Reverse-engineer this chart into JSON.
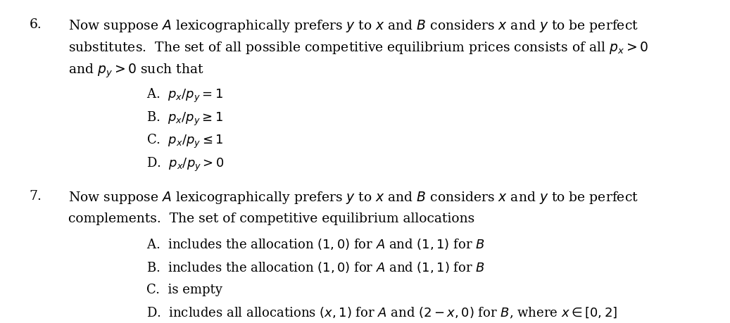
{
  "bg_color": "#ffffff",
  "text_color": "#000000",
  "fig_width": 10.37,
  "fig_height": 4.6,
  "dpi": 100,
  "q6_number": "6.",
  "q6_line1": "Now suppose $A$ lexicographically prefers $y$ to $x$ and $B$ considers $x$ and $y$ to be perfect",
  "q6_line2": "substitutes.  The set of all possible competitive equilibrium prices consists of all $p_x > 0$",
  "q6_line3": "and $p_y > 0$ such that",
  "q6_options": [
    "A.  $p_x/p_y = 1$",
    "B.  $p_x/p_y \\geq 1$",
    "C.  $p_x/p_y \\leq 1$",
    "D.  $p_x/p_y > 0$"
  ],
  "q7_number": "7.",
  "q7_line1": "Now suppose $A$ lexicographically prefers $y$ to $x$ and $B$ considers $x$ and $y$ to be perfect",
  "q7_line2": "complements.  The set of competitive equilibrium allocations",
  "q7_options": [
    "A.  includes the allocation $(1,0)$ for $A$ and $(1,1)$ for $B$",
    "B.  includes the allocation $(1,0)$ for $A$ and $(1,1)$ for $B$",
    "C.  is empty",
    "D.  includes all allocations $(x,1)$ for $A$ and $(2-x,0)$ for $B$, where $x \\in [0,2]$"
  ],
  "font_size_main": 13.5,
  "font_size_options": 13.0,
  "indent_number": 0.04,
  "indent_text": 0.1,
  "indent_options": 0.22
}
